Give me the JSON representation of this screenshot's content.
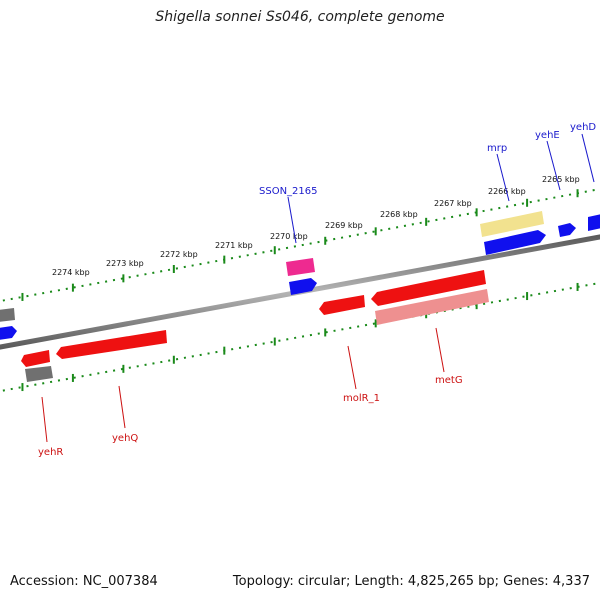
{
  "title": "Shigella sonnei Ss046, complete genome",
  "footer": {
    "accession": "Accession: NC_007384",
    "topology": "Topology: circular; Length: 4,825,265 bp; Genes: 4,337"
  },
  "scale_labels": [
    "2274 kbp",
    "2273 kbp",
    "2272 kbp",
    "2271 kbp",
    "2270 kbp",
    "2269 kbp",
    "2268 kbp",
    "2267 kbp",
    "2266 kbp",
    "2265 kbp"
  ],
  "top_genes": [
    "SSON_2165",
    "mrp",
    "yehE",
    "yehD"
  ],
  "bottom_genes": [
    "yehR",
    "yehQ",
    "molR_1",
    "metG"
  ],
  "colors": {
    "tick": "#1a8a1a",
    "backbone": "#808080",
    "forward_cds": "#1010ee",
    "reverse_cds": "#ee1111",
    "pseudogene": "#ee9090",
    "other_gene": "#707070",
    "highlight": "#ee2a90",
    "yellow_feature": "#f2e28f",
    "label_blue": "#1a1acc",
    "label_red": "#cc1111"
  }
}
